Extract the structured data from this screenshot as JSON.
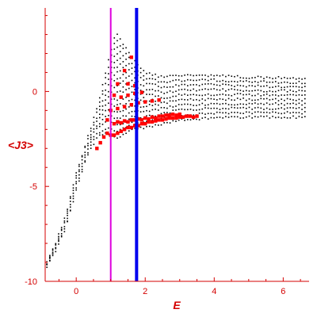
{
  "chart_data": {
    "type": "scatter",
    "title": "",
    "xlabel": "E",
    "ylabel": "<J3>",
    "xlim": [
      -0.9,
      6.75
    ],
    "ylim": [
      -10,
      4.4
    ],
    "x_ticks": [
      0,
      2,
      4,
      6
    ],
    "y_ticks": [
      0,
      -5,
      -10
    ],
    "grid": false,
    "colors": {
      "axis": "#d40000",
      "black_points": "#000000",
      "red_points": "#ff0000",
      "magenta_line": "#dd00dd",
      "blue_line": "#0000ee"
    },
    "vertical_lines": [
      {
        "x": 1.0,
        "color": "#dd00dd"
      },
      {
        "x": 1.75,
        "color": "#0000ee"
      }
    ],
    "series": [
      {
        "marker": "small-dot",
        "color": "#000000",
        "envelope": {
          "upper": [
            [
              -0.85,
              -9.0
            ],
            [
              -0.6,
              -8.0
            ],
            [
              -0.3,
              -6.5
            ],
            [
              0.0,
              -4.3
            ],
            [
              0.3,
              -2.6
            ],
            [
              0.6,
              -0.9
            ],
            [
              0.8,
              0.6
            ],
            [
              1.0,
              2.1
            ],
            [
              1.15,
              3.2
            ],
            [
              1.4,
              2.4
            ],
            [
              1.7,
              1.6
            ],
            [
              2.0,
              1.0
            ],
            [
              2.5,
              0.75
            ],
            [
              3.0,
              0.85
            ],
            [
              4.0,
              0.85
            ],
            [
              5.0,
              0.75
            ],
            [
              6.7,
              0.7
            ]
          ],
          "lower": [
            [
              -0.85,
              -9.2
            ],
            [
              -0.6,
              -8.4
            ],
            [
              -0.3,
              -7.2
            ],
            [
              0.0,
              -5.2
            ],
            [
              0.3,
              -3.5
            ],
            [
              0.6,
              -2.4
            ],
            [
              0.9,
              -2.2
            ],
            [
              1.2,
              -2.5
            ],
            [
              1.6,
              -2.0
            ],
            [
              2.0,
              -1.9
            ],
            [
              2.5,
              -1.7
            ],
            [
              3.0,
              -1.5
            ],
            [
              4.0,
              -1.4
            ],
            [
              5.0,
              -1.35
            ],
            [
              6.7,
              -1.35
            ]
          ]
        }
      },
      {
        "marker": "square",
        "color": "#ff0000",
        "values": [
          [
            0.6,
            -3.0
          ],
          [
            0.7,
            -2.7
          ],
          [
            0.8,
            -2.4
          ],
          [
            0.9,
            -2.2
          ],
          [
            1.0,
            -2.3
          ],
          [
            1.1,
            -2.3
          ],
          [
            1.2,
            -2.2
          ],
          [
            1.3,
            -2.1
          ],
          [
            1.4,
            -2.0
          ],
          [
            1.5,
            -1.9
          ],
          [
            1.6,
            -1.9
          ],
          [
            1.7,
            -1.8
          ],
          [
            1.8,
            -1.8
          ],
          [
            1.9,
            -1.7
          ],
          [
            2.0,
            -1.7
          ],
          [
            2.1,
            -1.6
          ],
          [
            2.2,
            -1.6
          ],
          [
            2.3,
            -1.55
          ],
          [
            2.4,
            -1.5
          ],
          [
            2.5,
            -1.5
          ],
          [
            2.6,
            -1.45
          ],
          [
            2.7,
            -1.4
          ],
          [
            2.8,
            -1.4
          ],
          [
            2.9,
            -1.4
          ],
          [
            3.0,
            -1.35
          ],
          [
            3.1,
            -1.35
          ],
          [
            3.2,
            -1.3
          ],
          [
            3.3,
            -1.3
          ],
          [
            3.4,
            -1.35
          ],
          [
            3.5,
            -1.3
          ],
          [
            1.1,
            -1.7
          ],
          [
            1.2,
            -1.6
          ],
          [
            1.3,
            -1.65
          ],
          [
            1.4,
            -1.55
          ],
          [
            1.5,
            -1.6
          ],
          [
            1.6,
            -1.5
          ],
          [
            1.7,
            -1.5
          ],
          [
            1.8,
            -1.45
          ],
          [
            1.9,
            -1.5
          ],
          [
            2.0,
            -1.4
          ],
          [
            2.1,
            -1.45
          ],
          [
            2.2,
            -1.35
          ],
          [
            2.3,
            -1.4
          ],
          [
            2.4,
            -1.3
          ],
          [
            2.5,
            -1.3
          ],
          [
            2.6,
            -1.25
          ],
          [
            2.7,
            -1.25
          ],
          [
            2.8,
            -1.2
          ],
          [
            2.9,
            -1.25
          ],
          [
            3.0,
            -1.2
          ],
          [
            1.2,
            -0.9
          ],
          [
            1.4,
            -0.8
          ],
          [
            1.6,
            -0.7
          ],
          [
            1.8,
            -0.6
          ],
          [
            2.0,
            -0.55
          ],
          [
            2.2,
            -0.5
          ],
          [
            2.4,
            -0.45
          ],
          [
            1.3,
            -0.3
          ],
          [
            1.5,
            -0.2
          ],
          [
            1.7,
            -0.1
          ],
          [
            1.9,
            -0.05
          ],
          [
            1.5,
            0.4
          ],
          [
            1.7,
            0.3
          ],
          [
            1.2,
            0.4
          ],
          [
            1.4,
            1.1
          ],
          [
            1.6,
            1.8
          ],
          [
            1.1,
            -0.2
          ],
          [
            0.9,
            -1.5
          ],
          [
            1.0,
            -1.0
          ]
        ]
      }
    ]
  }
}
